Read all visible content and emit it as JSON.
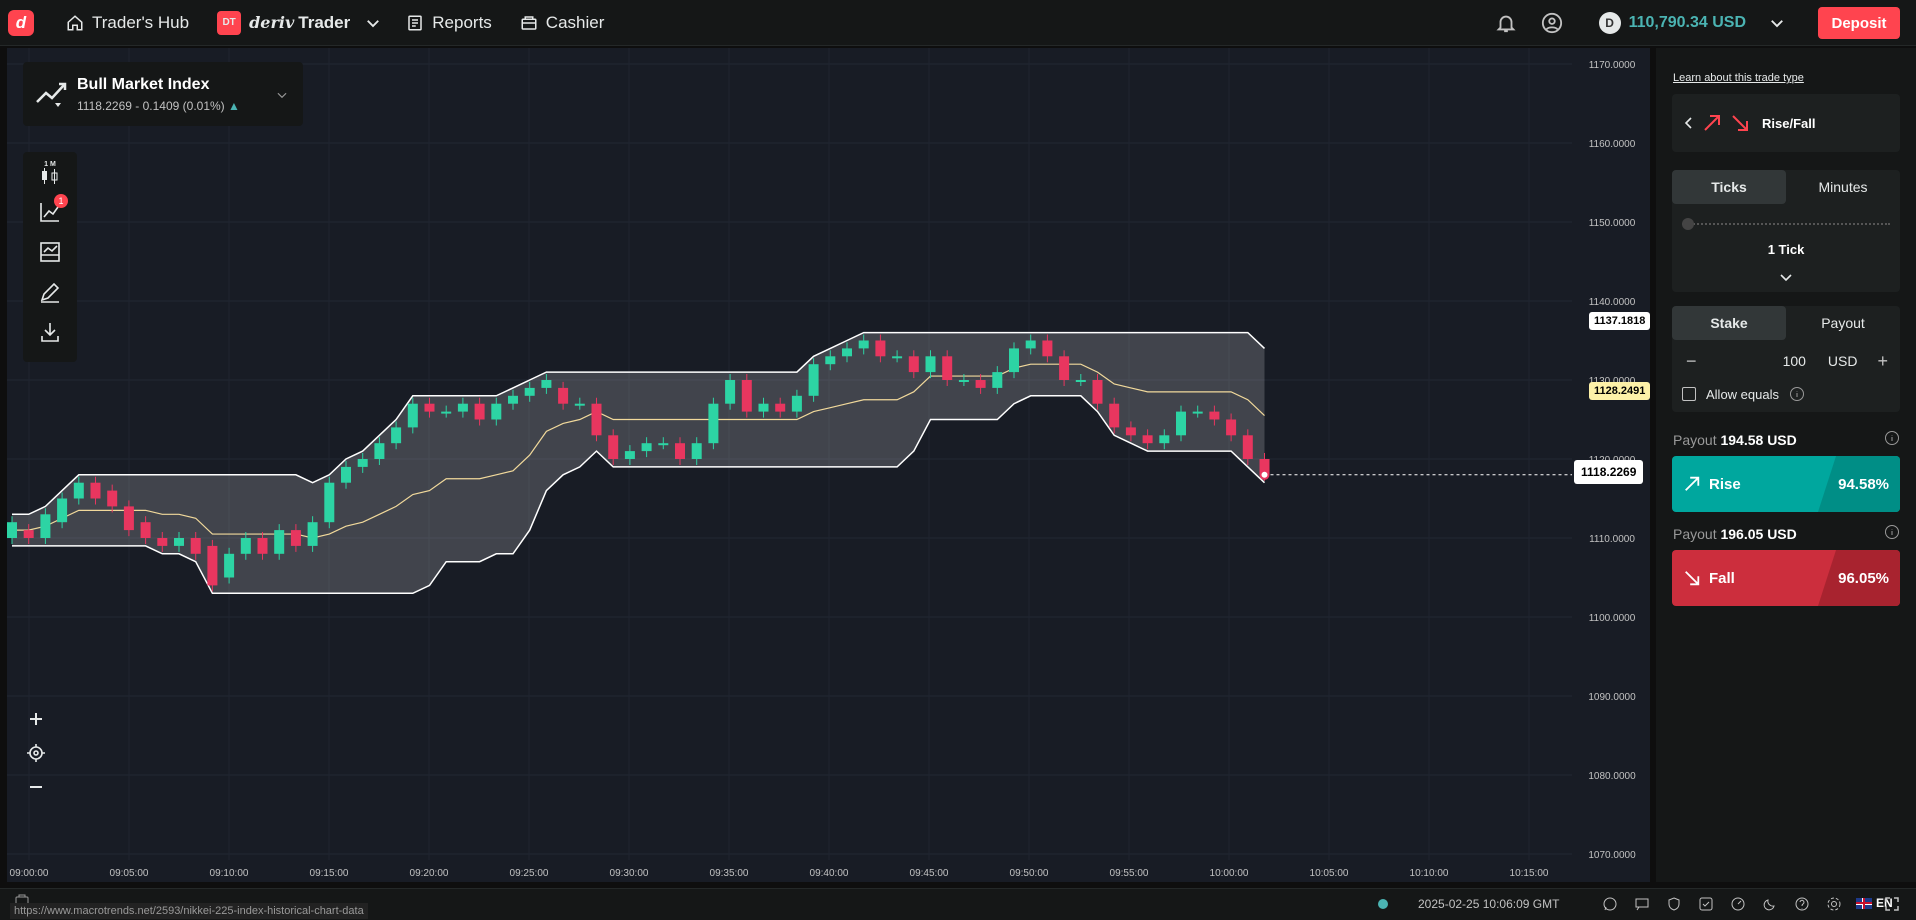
{
  "header": {
    "nav": [
      {
        "label": "Trader's Hub"
      },
      {
        "label": "Reports"
      },
      {
        "label": "Cashier"
      }
    ],
    "dt_badge": "DT",
    "brand_a": "deriv",
    "brand_b": "Trader",
    "balance": "110,790.34 USD",
    "deposit_label": "Deposit",
    "logo": "d"
  },
  "market": {
    "name": "Bull Market Index",
    "quote": "1118.2269 - 0.1409 (0.01%)"
  },
  "toolbar": {
    "interval": "1 M",
    "indicator_count": "1"
  },
  "chart_data": {
    "type": "candlestick",
    "y_ticks": [
      "1170.0000",
      "1160.0000",
      "1150.0000",
      "1140.0000",
      "1130.0000",
      "1120.0000",
      "1110.0000",
      "1100.0000",
      "1090.0000",
      "1080.0000",
      "1070.0000"
    ],
    "x_ticks": [
      "09:00:00",
      "09:05:00",
      "09:10:00",
      "09:15:00",
      "09:20:00",
      "09:25:00",
      "09:30:00",
      "09:35:00",
      "09:40:00",
      "09:45:00",
      "09:50:00",
      "09:55:00",
      "10:00:00",
      "10:05:00",
      "10:10:00",
      "10:15:00"
    ],
    "ylim": [
      1070,
      1170
    ],
    "tag_upper": "1137.1818",
    "tag_mid": "1128.2491",
    "tag_current": "1118.2269",
    "candles": [
      [
        1110,
        1112
      ],
      [
        1111,
        1110
      ],
      [
        1110,
        1113
      ],
      [
        1112,
        1115
      ],
      [
        1115,
        1117
      ],
      [
        1117,
        1115
      ],
      [
        1116,
        1114
      ],
      [
        1114,
        1111
      ],
      [
        1112,
        1110
      ],
      [
        1110,
        1109
      ],
      [
        1109,
        1110
      ],
      [
        1110,
        1108
      ],
      [
        1109,
        1104
      ],
      [
        1105,
        1108
      ],
      [
        1108,
        1110
      ],
      [
        1110,
        1108
      ],
      [
        1108,
        1111
      ],
      [
        1111,
        1109
      ],
      [
        1109,
        1112
      ],
      [
        1112,
        1117
      ],
      [
        1117,
        1119
      ],
      [
        1119,
        1120
      ],
      [
        1120,
        1122
      ],
      [
        1122,
        1124
      ],
      [
        1124,
        1127
      ],
      [
        1127,
        1126
      ],
      [
        1126,
        1126
      ],
      [
        1126,
        1127
      ],
      [
        1127,
        1125
      ],
      [
        1125,
        1127
      ],
      [
        1127,
        1128
      ],
      [
        1128,
        1129
      ],
      [
        1129,
        1130
      ],
      [
        1129,
        1127
      ],
      [
        1127,
        1127
      ],
      [
        1127,
        1123
      ],
      [
        1123,
        1120
      ],
      [
        1120,
        1121
      ],
      [
        1121,
        1122
      ],
      [
        1122,
        1122
      ],
      [
        1122,
        1120
      ],
      [
        1120,
        1122
      ],
      [
        1122,
        1127
      ],
      [
        1127,
        1130
      ],
      [
        1130,
        1126
      ],
      [
        1126,
        1127
      ],
      [
        1127,
        1126
      ],
      [
        1126,
        1128
      ],
      [
        1128,
        1132
      ],
      [
        1132,
        1133
      ],
      [
        1133,
        1134
      ],
      [
        1134,
        1135
      ],
      [
        1135,
        1133
      ],
      [
        1133,
        1133
      ],
      [
        1133,
        1131
      ],
      [
        1131,
        1133
      ],
      [
        1133,
        1130
      ],
      [
        1130,
        1130
      ],
      [
        1130,
        1129
      ],
      [
        1129,
        1131
      ],
      [
        1131,
        1134
      ],
      [
        1134,
        1135
      ],
      [
        1135,
        1133
      ],
      [
        1133,
        1130
      ],
      [
        1130,
        1130
      ],
      [
        1130,
        1127
      ],
      [
        1127,
        1124
      ],
      [
        1124,
        1123
      ],
      [
        1123,
        1122
      ],
      [
        1122,
        1123
      ],
      [
        1123,
        1126
      ],
      [
        1126,
        1126
      ],
      [
        1126,
        1125
      ],
      [
        1125,
        1123
      ],
      [
        1123,
        1120
      ],
      [
        1120,
        1118
      ]
    ]
  },
  "panel": {
    "learn": "Learn about this trade type",
    "trade_type": "Rise/Fall",
    "tab_ticks": "Ticks",
    "tab_minutes": "Minutes",
    "duration": "1 Tick",
    "tab_stake": "Stake",
    "tab_payout": "Payout",
    "amount": "100",
    "currency": "USD",
    "allow_equals": "Allow equals",
    "payout_label": "Payout",
    "rise_payout": "194.58 USD",
    "rise_label": "Rise",
    "rise_pct": "94.58%",
    "fall_payout": "196.05 USD",
    "fall_label": "Fall",
    "fall_pct": "96.05%",
    "colors": {
      "rise": "#008832",
      "fall": "#cc2e3d",
      "rise_teal": "#00a79e"
    }
  },
  "footer": {
    "url": "https://www.macrotrends.net/2593/nikkei-225-index-historical-chart-data",
    "datetime": "2025-02-25 10:06:09 GMT",
    "lang": "EN"
  }
}
